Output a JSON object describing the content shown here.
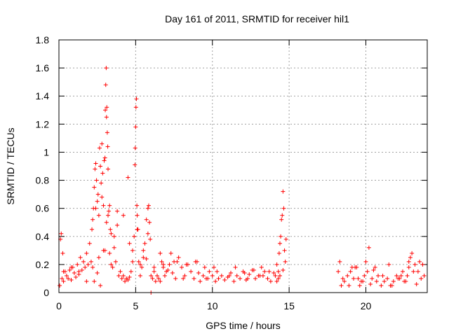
{
  "chart_data": {
    "type": "scatter",
    "title": "Day 161 of 2011, SRMTID for receiver hil1",
    "xlabel": "GPS time / hours",
    "ylabel": "SRMTID / TECUs",
    "xlim": [
      0,
      24
    ],
    "ylim": [
      0,
      1.8
    ],
    "xticks": [
      0,
      5,
      10,
      15,
      20
    ],
    "xtick_labels": [
      "0",
      "5",
      "10",
      "15",
      "20"
    ],
    "yticks": [
      0,
      0.2,
      0.4,
      0.6,
      0.8,
      1,
      1.2,
      1.4,
      1.6,
      1.8
    ],
    "ytick_labels": [
      "0",
      "0.2",
      "0.4",
      "0.6",
      "0.8",
      "1",
      "1.2",
      "1.4",
      "1.6",
      "1.8"
    ],
    "grid": true,
    "marker": "plus",
    "marker_color": "#ff0000",
    "series": [
      {
        "name": "SRMTID",
        "x": [
          0.05,
          0.1,
          0.15,
          0.2,
          0.25,
          0.3,
          0.4,
          0.5,
          0.6,
          0.7,
          0.8,
          0.9,
          1.0,
          1.1,
          1.2,
          1.3,
          1.4,
          1.5,
          1.6,
          1.7,
          1.8,
          1.9,
          2.0,
          2.1,
          2.15,
          2.2,
          2.25,
          2.3,
          2.35,
          2.4,
          2.45,
          2.5,
          2.55,
          2.6,
          2.65,
          2.7,
          2.75,
          2.8,
          2.85,
          2.9,
          2.95,
          3.0,
          3.02,
          3.05,
          3.08,
          3.1,
          3.12,
          3.15,
          3.18,
          3.2,
          3.25,
          3.3,
          3.35,
          3.4,
          3.5,
          3.6,
          3.7,
          3.8,
          3.9,
          4.0,
          4.1,
          4.2,
          4.3,
          4.4,
          4.5,
          4.6,
          4.7,
          4.8,
          4.9,
          4.95,
          4.97,
          5.0,
          5.02,
          5.05,
          5.08,
          5.1,
          5.15,
          5.2,
          5.3,
          5.4,
          5.5,
          5.6,
          5.7,
          5.8,
          5.85,
          5.9,
          5.95,
          6.0,
          6.1,
          6.2,
          6.3,
          6.4,
          6.5,
          6.6,
          6.7,
          6.8,
          6.9,
          7.0,
          7.2,
          7.4,
          7.6,
          7.8,
          8.0,
          8.2,
          8.4,
          8.6,
          8.8,
          9.0,
          9.2,
          9.4,
          9.6,
          9.8,
          10.0,
          10.2,
          10.4,
          10.6,
          10.8,
          11.0,
          11.2,
          11.4,
          11.6,
          11.8,
          12.0,
          12.2,
          12.4,
          12.6,
          12.8,
          13.0,
          13.2,
          13.4,
          13.6,
          13.8,
          14.0,
          14.1,
          14.2,
          14.3,
          14.35,
          14.4,
          14.45,
          14.5,
          14.55,
          14.6,
          14.65,
          14.7,
          14.75,
          14.8,
          18.2,
          18.4,
          18.6,
          18.8,
          19.0,
          19.2,
          19.4,
          19.6,
          19.8,
          19.9,
          20.0,
          20.1,
          20.2,
          20.4,
          20.6,
          20.8,
          21.0,
          21.2,
          21.4,
          21.6,
          21.8,
          22.0,
          22.2,
          22.4,
          22.6,
          22.7,
          22.8,
          22.9,
          23.0,
          23.2,
          23.4,
          23.6,
          23.8,
          2.3,
          2.5,
          2.7,
          2.9,
          3.1,
          3.3,
          3.6,
          4.2,
          4.6,
          5.5,
          5.8,
          6.2,
          7.3,
          7.7,
          8.3,
          8.9,
          9.5,
          10.3,
          11.5,
          12.3,
          13.1,
          13.7,
          14.4,
          18.5,
          19.3,
          19.7,
          20.3,
          21.5,
          22.3,
          22.8,
          23.3,
          0.3,
          0.8,
          1.3,
          1.8,
          2.2,
          2.6,
          3.0,
          3.4,
          3.8,
          4.5,
          5.1,
          6.0,
          6.6,
          7.1,
          8.1,
          9.1,
          10.1,
          11.1,
          12.1,
          13.3,
          14.2,
          14.6,
          18.3,
          18.9,
          19.5,
          20.5,
          21.1,
          21.7,
          22.5,
          23.1,
          23.7,
          2.8,
          2.4,
          3.2,
          4.8,
          5.3,
          5.7,
          6.8,
          7.5,
          9.7,
          12.7,
          14.3,
          19.1,
          20.7,
          22.1,
          23.5
        ],
        "y": [
          0.05,
          0.38,
          0.42,
          0.1,
          0.28,
          0.08,
          0.15,
          0.12,
          0.1,
          0.16,
          0.09,
          0.18,
          0.14,
          0.11,
          0.2,
          0.13,
          0.25,
          0.16,
          0.22,
          0.18,
          0.28,
          0.2,
          0.35,
          0.22,
          0.45,
          0.52,
          0.6,
          0.75,
          0.88,
          0.92,
          0.8,
          0.65,
          0.7,
          0.55,
          1.03,
          0.9,
          0.78,
          1.06,
          0.85,
          0.62,
          0.94,
          0.96,
          1.3,
          1.48,
          1.6,
          1.25,
          1.32,
          1.14,
          1.04,
          0.55,
          0.58,
          0.28,
          0.45,
          0.2,
          0.18,
          0.32,
          0.22,
          0.48,
          0.12,
          0.15,
          0.1,
          0.12,
          0.08,
          0.1,
          0.09,
          0.11,
          0.15,
          0.22,
          0.4,
          0.91,
          1.03,
          1.18,
          1.32,
          1.38,
          0.62,
          0.55,
          0.45,
          0.22,
          0.12,
          0.18,
          0.3,
          0.35,
          0.52,
          0.6,
          0.62,
          0.5,
          0.38,
          0.0,
          0.1,
          0.15,
          0.08,
          0.12,
          0.1,
          0.08,
          0.22,
          0.18,
          0.12,
          0.15,
          0.2,
          0.14,
          0.1,
          0.25,
          0.18,
          0.12,
          0.2,
          0.15,
          0.1,
          0.22,
          0.08,
          0.12,
          0.1,
          0.15,
          0.12,
          0.08,
          0.1,
          0.12,
          0.09,
          0.11,
          0.14,
          0.08,
          0.12,
          0.1,
          0.15,
          0.09,
          0.13,
          0.16,
          0.1,
          0.12,
          0.18,
          0.15,
          0.1,
          0.08,
          0.14,
          0.12,
          0.2,
          0.15,
          0.28,
          0.35,
          0.4,
          0.52,
          0.55,
          0.72,
          0.6,
          0.3,
          0.22,
          0.38,
          0.15,
          0.05,
          0.08,
          0.12,
          0.15,
          0.1,
          0.18,
          0.05,
          0.08,
          0.12,
          0.22,
          0.15,
          0.32,
          0.1,
          0.18,
          0.12,
          0.05,
          0.08,
          0.1,
          0.05,
          0.08,
          0.12,
          0.1,
          0.15,
          0.08,
          0.12,
          0.18,
          0.25,
          0.28,
          0.2,
          0.15,
          0.1,
          0.12,
          0.08,
          0.14,
          0.05,
          0.3,
          0.5,
          0.62,
          0.4,
          0.55,
          0.35,
          0.25,
          0.42,
          0.18,
          0.28,
          0.22,
          0.2,
          0.22,
          0.18,
          0.15,
          0.18,
          0.1,
          0.12,
          0.15,
          0.12,
          0.1,
          0.18,
          0.08,
          0.06,
          0.2,
          0.12,
          0.22,
          0.06,
          0.15,
          0.18,
          0.15,
          0.08,
          0.18,
          0.25,
          0.3,
          0.42,
          0.58,
          0.82,
          0.45,
          0.12,
          0.28,
          0.16,
          0.1,
          0.14,
          0.18,
          0.12,
          0.14,
          0.12,
          0.08,
          0.16,
          0.22,
          0.05,
          0.1,
          0.16,
          0.12,
          0.05,
          0.08,
          0.15,
          0.2,
          0.68,
          0.6,
          0.88,
          0.3,
          0.2,
          0.24,
          0.2,
          0.22,
          0.1,
          0.16,
          0.1,
          0.18,
          0.08,
          0.1,
          0.22
        ]
      }
    ]
  }
}
